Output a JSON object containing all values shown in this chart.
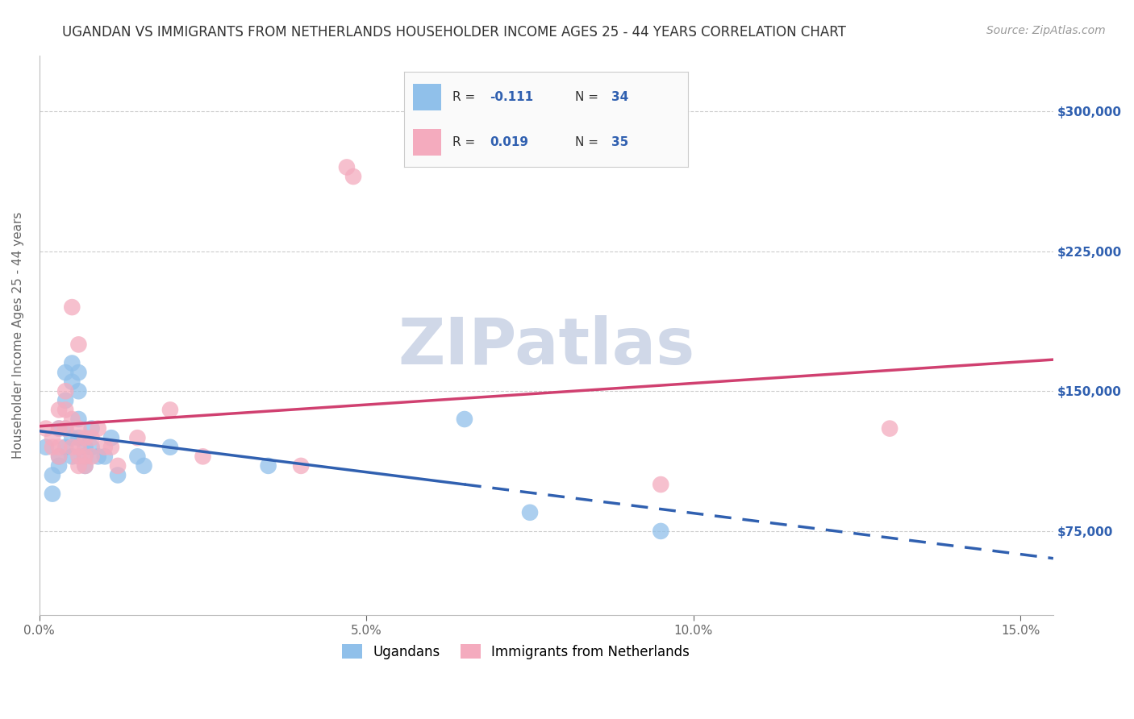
{
  "title": "UGANDAN VS IMMIGRANTS FROM NETHERLANDS HOUSEHOLDER INCOME AGES 25 - 44 YEARS CORRELATION CHART",
  "source": "Source: ZipAtlas.com",
  "ylabel": "Householder Income Ages 25 - 44 years",
  "xlim": [
    0.0,
    0.155
  ],
  "ylim": [
    30000,
    330000
  ],
  "yticks": [
    75000,
    150000,
    225000,
    300000
  ],
  "ytick_labels": [
    "$75,000",
    "$150,000",
    "$225,000",
    "$300,000"
  ],
  "xticks": [
    0.0,
    0.05,
    0.1,
    0.15
  ],
  "xtick_labels": [
    "0.0%",
    "5.0%",
    "10.0%",
    "15.0%"
  ],
  "ugandan_color": "#90C0EA",
  "netherlands_color": "#F4ABBE",
  "ugandan_line_color": "#3060B0",
  "netherlands_line_color": "#D04070",
  "ugandan_scatter": [
    [
      0.001,
      120000
    ],
    [
      0.002,
      105000
    ],
    [
      0.002,
      95000
    ],
    [
      0.003,
      130000
    ],
    [
      0.003,
      115000
    ],
    [
      0.003,
      110000
    ],
    [
      0.004,
      160000
    ],
    [
      0.004,
      145000
    ],
    [
      0.004,
      130000
    ],
    [
      0.004,
      120000
    ],
    [
      0.005,
      165000
    ],
    [
      0.005,
      155000
    ],
    [
      0.005,
      125000
    ],
    [
      0.005,
      115000
    ],
    [
      0.006,
      160000
    ],
    [
      0.006,
      150000
    ],
    [
      0.006,
      135000
    ],
    [
      0.006,
      125000
    ],
    [
      0.007,
      120000
    ],
    [
      0.007,
      115000
    ],
    [
      0.007,
      110000
    ],
    [
      0.008,
      130000
    ],
    [
      0.008,
      120000
    ],
    [
      0.009,
      115000
    ],
    [
      0.01,
      115000
    ],
    [
      0.011,
      125000
    ],
    [
      0.012,
      105000
    ],
    [
      0.015,
      115000
    ],
    [
      0.016,
      110000
    ],
    [
      0.02,
      120000
    ],
    [
      0.035,
      110000
    ],
    [
      0.065,
      135000
    ],
    [
      0.075,
      85000
    ],
    [
      0.095,
      75000
    ]
  ],
  "netherlands_scatter": [
    [
      0.001,
      130000
    ],
    [
      0.002,
      125000
    ],
    [
      0.002,
      120000
    ],
    [
      0.003,
      140000
    ],
    [
      0.003,
      130000
    ],
    [
      0.003,
      120000
    ],
    [
      0.003,
      115000
    ],
    [
      0.004,
      150000
    ],
    [
      0.004,
      140000
    ],
    [
      0.004,
      130000
    ],
    [
      0.005,
      195000
    ],
    [
      0.005,
      135000
    ],
    [
      0.005,
      120000
    ],
    [
      0.006,
      175000
    ],
    [
      0.006,
      130000
    ],
    [
      0.006,
      120000
    ],
    [
      0.006,
      115000
    ],
    [
      0.006,
      110000
    ],
    [
      0.007,
      125000
    ],
    [
      0.007,
      115000
    ],
    [
      0.007,
      110000
    ],
    [
      0.008,
      125000
    ],
    [
      0.008,
      115000
    ],
    [
      0.009,
      130000
    ],
    [
      0.01,
      120000
    ],
    [
      0.011,
      120000
    ],
    [
      0.012,
      110000
    ],
    [
      0.015,
      125000
    ],
    [
      0.02,
      140000
    ],
    [
      0.025,
      115000
    ],
    [
      0.04,
      110000
    ],
    [
      0.047,
      270000
    ],
    [
      0.048,
      265000
    ],
    [
      0.095,
      100000
    ],
    [
      0.13,
      130000
    ]
  ],
  "background_color": "#FFFFFF",
  "watermark_text": "ZIPatlas",
  "watermark_color": "#D0D8E8",
  "grid_color": "#CCCCCC",
  "title_color": "#333333",
  "axis_label_color": "#666666",
  "tick_color_right": "#3060B0",
  "title_fontsize": 12,
  "source_fontsize": 10,
  "axis_fontsize": 11,
  "tick_fontsize": 11
}
